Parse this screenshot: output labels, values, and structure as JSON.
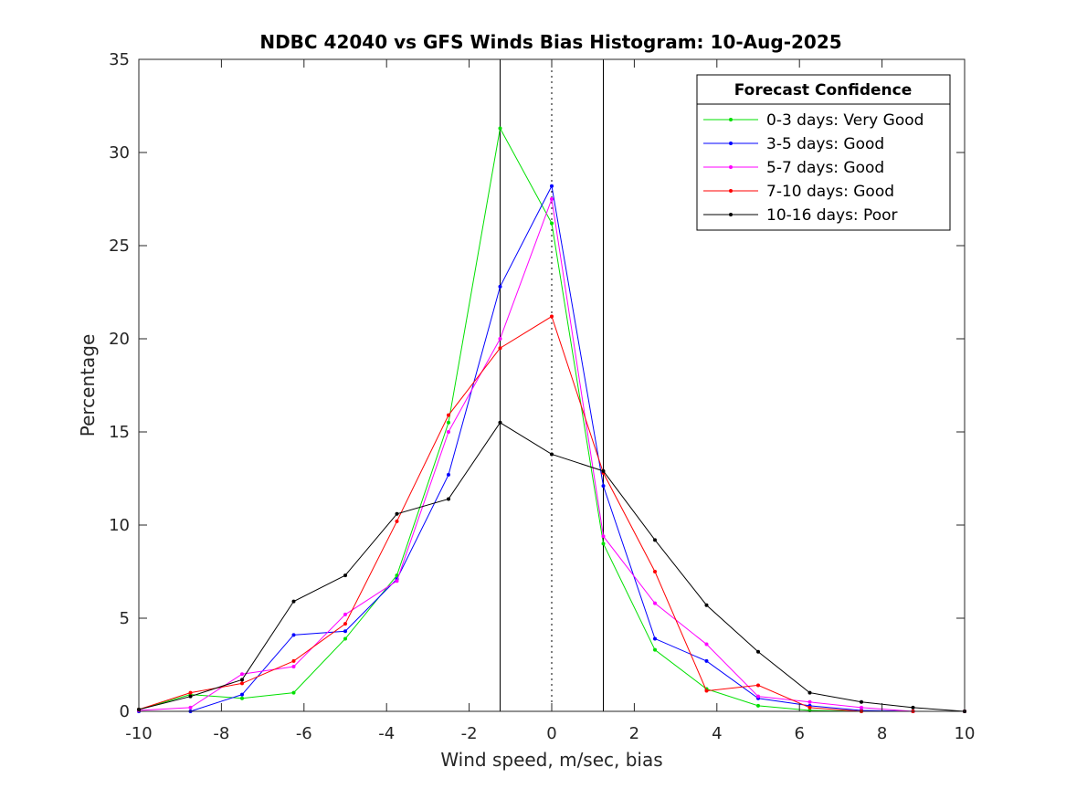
{
  "chart_data": {
    "type": "line",
    "title": "NDBC 42040 vs GFS Winds Bias Histogram: 10-Aug-2025",
    "xlabel": "Wind speed, m/sec, bias",
    "ylabel": "Percentage",
    "xlim": [
      -10,
      10
    ],
    "ylim": [
      0,
      35
    ],
    "xticks": [
      -10,
      -8,
      -6,
      -4,
      -2,
      0,
      2,
      4,
      6,
      8,
      10
    ],
    "yticks": [
      0,
      5,
      10,
      15,
      20,
      25,
      30,
      35
    ],
    "grid": false,
    "reference_lines": [
      {
        "x": -1.25,
        "style": "solid"
      },
      {
        "x": 0,
        "style": "dotted"
      },
      {
        "x": 1.25,
        "style": "solid"
      }
    ],
    "legend": {
      "title": "Forecast Confidence",
      "placement": "top-right"
    },
    "x": [
      -10,
      -8.75,
      -7.5,
      -6.25,
      -5,
      -3.75,
      -2.5,
      -1.25,
      0,
      1.25,
      2.5,
      3.75,
      5,
      6.25,
      7.5,
      8.75,
      10
    ],
    "series": [
      {
        "name": "0-3 days: Very Good",
        "color": "#00e000",
        "values": [
          0.1,
          0.9,
          0.7,
          1.0,
          3.9,
          7.3,
          15.5,
          31.3,
          26.2,
          9.0,
          3.3,
          1.2,
          0.3,
          0.05,
          0.0,
          0.0,
          0.0
        ]
      },
      {
        "name": "3-5 days: Good",
        "color": "#0000ff",
        "values": [
          0.0,
          0.0,
          0.9,
          4.1,
          4.3,
          7.1,
          12.7,
          22.8,
          28.2,
          12.1,
          3.9,
          2.7,
          0.7,
          0.3,
          0.05,
          0.0,
          0.0
        ]
      },
      {
        "name": "5-7 days: Good",
        "color": "#ff00ff",
        "values": [
          0.05,
          0.2,
          2.0,
          2.4,
          5.2,
          7.0,
          15.0,
          20.0,
          27.5,
          9.4,
          5.8,
          3.6,
          0.8,
          0.5,
          0.2,
          0.0,
          0.0
        ]
      },
      {
        "name": "7-10 days: Good",
        "color": "#ff0000",
        "values": [
          0.1,
          1.0,
          1.5,
          2.7,
          4.7,
          10.2,
          15.9,
          19.5,
          21.2,
          12.8,
          7.5,
          1.1,
          1.4,
          0.2,
          0.0,
          0.0,
          0.0
        ]
      },
      {
        "name": "10-16 days: Poor",
        "color": "#000000",
        "values": [
          0.1,
          0.8,
          1.7,
          5.9,
          7.3,
          10.6,
          11.4,
          15.5,
          13.8,
          12.9,
          9.2,
          5.7,
          3.2,
          1.0,
          0.5,
          0.2,
          0.0
        ]
      }
    ]
  }
}
